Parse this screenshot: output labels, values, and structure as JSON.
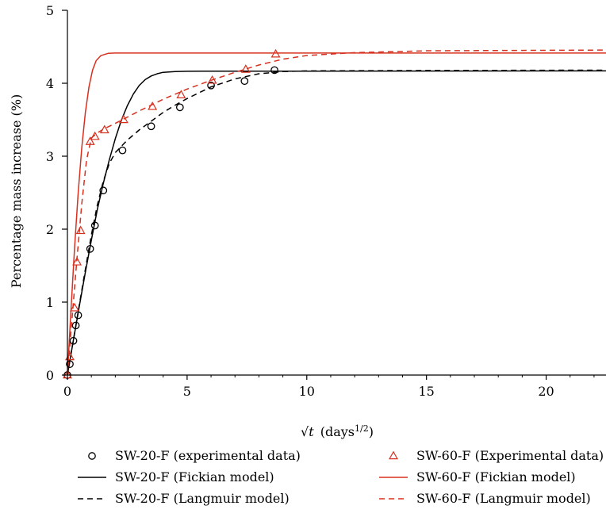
{
  "chart_data": {
    "type": "scatter",
    "xlabel_symbol": "√t",
    "xlabel_var": "t",
    "xlabel_unit": "(days",
    "xlabel_exp": "1/2",
    "xlabel_close": ")",
    "ylabel": "Percentage mass increase (%)",
    "xlim": [
      0,
      22.5
    ],
    "ylim": [
      0,
      5
    ],
    "xticks": [
      0,
      5,
      10,
      15,
      20
    ],
    "yticks": [
      0,
      1,
      2,
      3,
      4,
      5
    ],
    "grid": false,
    "legend_position": "bottom",
    "colors": {
      "black": "#000000",
      "red": "#d7301f"
    },
    "series": [
      {
        "name": "SW-20-F (experimental data)",
        "kind": "scatter",
        "marker": "circle",
        "color": "#000000",
        "points": [
          [
            0.0,
            0.0
          ],
          [
            0.1,
            0.15
          ],
          [
            0.25,
            0.47
          ],
          [
            0.35,
            0.68
          ],
          [
            0.45,
            0.82
          ],
          [
            0.95,
            1.73
          ],
          [
            1.15,
            2.05
          ],
          [
            1.5,
            2.53
          ],
          [
            2.3,
            3.08
          ],
          [
            3.5,
            3.41
          ],
          [
            4.7,
            3.67
          ],
          [
            6.0,
            3.97
          ],
          [
            7.4,
            4.03
          ],
          [
            8.65,
            4.18
          ]
        ]
      },
      {
        "name": "SW-60-F (Experimental data)",
        "kind": "scatter",
        "marker": "triangle",
        "color": "#d7301f",
        "points": [
          [
            0.0,
            0.0
          ],
          [
            0.1,
            0.25
          ],
          [
            0.3,
            0.92
          ],
          [
            0.4,
            1.55
          ],
          [
            0.55,
            1.98
          ],
          [
            0.95,
            3.2
          ],
          [
            1.15,
            3.27
          ],
          [
            1.55,
            3.36
          ],
          [
            2.35,
            3.5
          ],
          [
            3.55,
            3.68
          ],
          [
            4.75,
            3.84
          ],
          [
            6.05,
            4.04
          ],
          [
            7.45,
            4.19
          ],
          [
            8.7,
            4.4
          ]
        ]
      },
      {
        "name": "SW-20-F (Fickian model)",
        "kind": "line",
        "dash": "solid",
        "color": "#000000",
        "points": [
          [
            0,
            0
          ],
          [
            0.25,
            0.48
          ],
          [
            0.5,
            0.95
          ],
          [
            0.75,
            1.41
          ],
          [
            1.0,
            1.85
          ],
          [
            1.25,
            2.27
          ],
          [
            1.5,
            2.63
          ],
          [
            1.75,
            2.95
          ],
          [
            2.0,
            3.24
          ],
          [
            2.25,
            3.49
          ],
          [
            2.5,
            3.69
          ],
          [
            2.75,
            3.85
          ],
          [
            3.0,
            3.97
          ],
          [
            3.25,
            4.05
          ],
          [
            3.5,
            4.1
          ],
          [
            3.75,
            4.13
          ],
          [
            4.0,
            4.15
          ],
          [
            4.5,
            4.16
          ],
          [
            5.0,
            4.165
          ],
          [
            22.5,
            4.17
          ]
        ]
      },
      {
        "name": "SW-20-F (Langmuir model)",
        "kind": "line",
        "dash": "dashed",
        "color": "#000000",
        "points": [
          [
            0,
            0
          ],
          [
            0.25,
            0.48
          ],
          [
            0.5,
            0.97
          ],
          [
            0.75,
            1.45
          ],
          [
            1.0,
            1.92
          ],
          [
            1.25,
            2.33
          ],
          [
            1.5,
            2.66
          ],
          [
            1.75,
            2.9
          ],
          [
            2.0,
            3.05
          ],
          [
            2.5,
            3.22
          ],
          [
            3.0,
            3.36
          ],
          [
            3.5,
            3.48
          ],
          [
            4.0,
            3.6
          ],
          [
            4.5,
            3.7
          ],
          [
            5.0,
            3.79
          ],
          [
            6.0,
            3.95
          ],
          [
            7.0,
            4.06
          ],
          [
            8.0,
            4.13
          ],
          [
            9.0,
            4.16
          ],
          [
            10.0,
            4.17
          ],
          [
            15.0,
            4.175
          ],
          [
            22.5,
            4.18
          ]
        ]
      },
      {
        "name": "SW-60-F (Fickian model)",
        "kind": "line",
        "dash": "solid",
        "color": "#d7301f",
        "points": [
          [
            0,
            0
          ],
          [
            0.15,
            0.9
          ],
          [
            0.3,
            1.75
          ],
          [
            0.45,
            2.5
          ],
          [
            0.6,
            3.12
          ],
          [
            0.75,
            3.6
          ],
          [
            0.9,
            3.95
          ],
          [
            1.05,
            4.18
          ],
          [
            1.2,
            4.31
          ],
          [
            1.4,
            4.38
          ],
          [
            1.7,
            4.41
          ],
          [
            2.0,
            4.415
          ],
          [
            22.5,
            4.415
          ]
        ]
      },
      {
        "name": "SW-60-F (Langmuir model)",
        "kind": "line",
        "dash": "dashed",
        "color": "#d7301f",
        "points": [
          [
            0,
            0
          ],
          [
            0.2,
            0.8
          ],
          [
            0.4,
            1.6
          ],
          [
            0.6,
            2.35
          ],
          [
            0.8,
            2.95
          ],
          [
            1.0,
            3.25
          ],
          [
            1.25,
            3.32
          ],
          [
            1.5,
            3.37
          ],
          [
            2.0,
            3.45
          ],
          [
            3.0,
            3.62
          ],
          [
            4.0,
            3.78
          ],
          [
            5.0,
            3.92
          ],
          [
            6.0,
            4.04
          ],
          [
            7.0,
            4.15
          ],
          [
            8.0,
            4.25
          ],
          [
            9.0,
            4.33
          ],
          [
            10.0,
            4.38
          ],
          [
            12.0,
            4.42
          ],
          [
            15.0,
            4.445
          ],
          [
            22.5,
            4.455
          ]
        ]
      }
    ],
    "legend": [
      {
        "label": "SW-20-F (experimental data)",
        "symbol": "circle",
        "color": "#000000"
      },
      {
        "label": "SW-60-F (Experimental data)",
        "symbol": "triangle",
        "color": "#d7301f"
      },
      {
        "label": "SW-20-F (Fickian model)",
        "symbol": "solid",
        "color": "#000000"
      },
      {
        "label": "SW-60-F (Fickian model)",
        "symbol": "solid",
        "color": "#d7301f"
      },
      {
        "label": "SW-20-F (Langmuir model)",
        "symbol": "dashed",
        "color": "#000000"
      },
      {
        "label": "SW-60-F (Langmuir model)",
        "symbol": "dashed",
        "color": "#d7301f"
      }
    ]
  }
}
